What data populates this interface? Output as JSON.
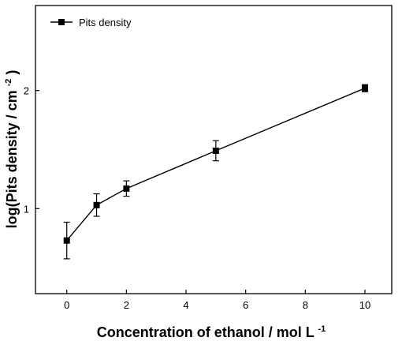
{
  "chart_data": {
    "type": "line",
    "x": [
      0,
      1,
      2,
      5,
      10
    ],
    "series": [
      {
        "name": "Pits density",
        "values": [
          0.73,
          1.03,
          1.17,
          1.49,
          2.02
        ],
        "error": [
          0.155,
          0.095,
          0.065,
          0.085,
          0.03
        ],
        "marker": "square",
        "color": "#000000"
      }
    ],
    "xlabel": "Concentration of ethanol / mol L",
    "xlabel_sup": "-1",
    "ylabel": "log(Pits density / cm",
    "ylabel_sup": "-2",
    "ylabel_tail": ")",
    "xlim": [
      -1.05,
      10.9
    ],
    "ylim": [
      0.28,
      2.72
    ],
    "xticks": [
      0,
      2,
      4,
      6,
      8,
      10
    ],
    "xtick_labels": [
      "0",
      "2",
      "4",
      "6",
      "8",
      "10"
    ],
    "yticks": [
      1,
      2
    ],
    "ytick_labels": [
      "1",
      "2"
    ],
    "grid": false,
    "legend_position": "top-left",
    "frame": "box"
  }
}
